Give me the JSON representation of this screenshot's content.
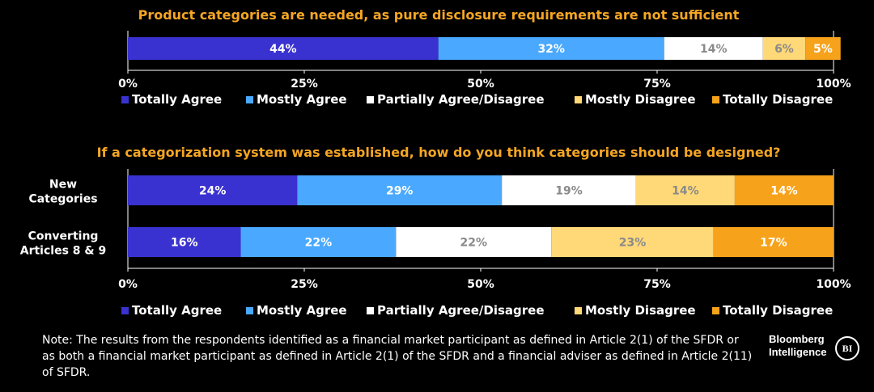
{
  "legend": [
    "Totally Agree",
    "Mostly Agree",
    "Partially Agree/Disagree",
    "Mostly Disagree",
    "Totally Disagree"
  ],
  "colors": [
    "#3a32d0",
    "#4aa9ff",
    "#ffffff",
    "#ffd878",
    "#f7a21b"
  ],
  "label_colors": [
    "#ffffff",
    "#ffffff",
    "#8a8a8a",
    "#8a8a8a",
    "#ffffff"
  ],
  "chart_data": [
    {
      "type": "bar",
      "orientation": "horizontal-stacked",
      "title": "Product categories are needed, as pure disclosure requirements are not sufficient",
      "categories": [
        ""
      ],
      "series": [
        {
          "name": "Totally Agree",
          "values": [
            44
          ],
          "label": "44%"
        },
        {
          "name": "Mostly Agree",
          "values": [
            32
          ],
          "label": "32%"
        },
        {
          "name": "Partially Agree/Disagree",
          "values": [
            14
          ],
          "label": "14%"
        },
        {
          "name": "Mostly Disagree",
          "values": [
            6
          ],
          "label": "6%"
        },
        {
          "name": "Totally Disagree",
          "values": [
            5
          ],
          "label": "5%"
        }
      ],
      "xlim": [
        0,
        100
      ],
      "xticks": [
        "0%",
        "25%",
        "50%",
        "75%",
        "100%"
      ],
      "legend_position": "bottom"
    },
    {
      "type": "bar",
      "orientation": "horizontal-stacked",
      "title": "If a categorization system was established, how do you think categories should be designed?",
      "categories": [
        [
          "New",
          "Categories"
        ],
        [
          "Converting",
          "Articles 8 & 9"
        ]
      ],
      "series": [
        {
          "name": "Totally Agree",
          "values": [
            24,
            16
          ],
          "labels": [
            "24%",
            "16%"
          ]
        },
        {
          "name": "Mostly Agree",
          "values": [
            29,
            22
          ],
          "labels": [
            "29%",
            "22%"
          ]
        },
        {
          "name": "Partially Agree/Disagree",
          "values": [
            19,
            22
          ],
          "labels": [
            "19%",
            "22%"
          ]
        },
        {
          "name": "Mostly Disagree",
          "values": [
            14,
            23
          ],
          "labels": [
            "14%",
            "23%"
          ]
        },
        {
          "name": "Totally Disagree",
          "values": [
            14,
            17
          ],
          "labels": [
            "14%",
            "17%"
          ]
        }
      ],
      "xlim": [
        0,
        100
      ],
      "xticks": [
        "0%",
        "25%",
        "50%",
        "75%",
        "100%"
      ],
      "legend_position": "bottom"
    }
  ],
  "note": "Note: The results from the respondents identified as a financial market participant as defined in Article 2(1) of the SFDR or as both a financial market participant as defined in Article 2(1) of the SFDR and a financial adviser as defined in Article 2(11) of SFDR.",
  "logo": {
    "line1": "Bloomberg",
    "line2": "Intelligence",
    "badge": "BI"
  }
}
